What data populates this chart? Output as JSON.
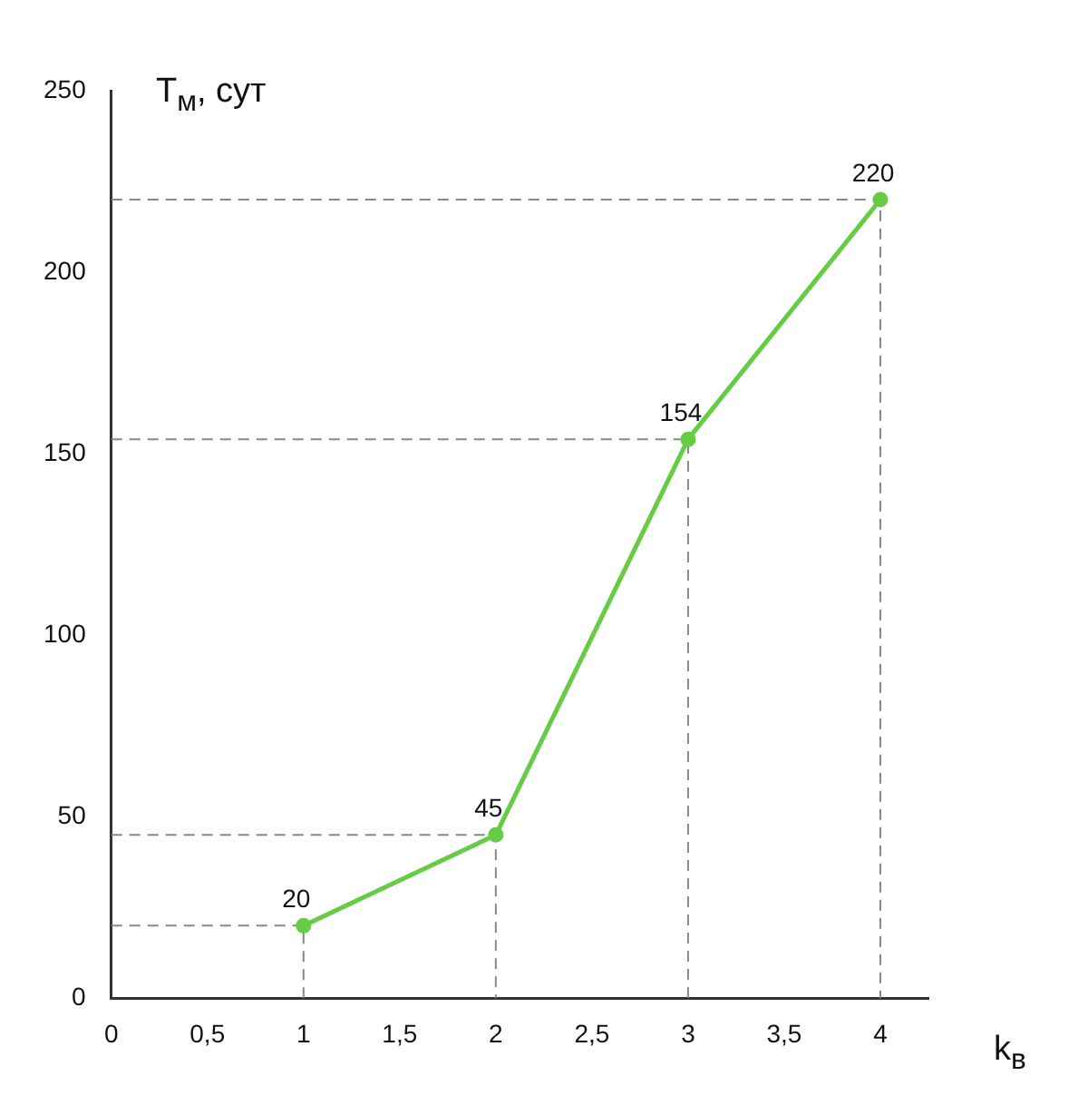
{
  "chart_data": {
    "type": "line",
    "xlabel": "k$_{в}$",
    "ylabel": "T$_{м}$, сут",
    "x": [
      1,
      2,
      3,
      4
    ],
    "series": [
      {
        "color": "#66cc44",
        "values": [
          20,
          45,
          154,
          220
        ]
      },
      {
        "color": "#888888",
        "x": [
          0,
          1,
          1
        ],
        "values": [
          20,
          20,
          0
        ],
        "line_style": "dashed",
        "marker": "none",
        "data_labels": false
      },
      {
        "color": "#888888",
        "x": [
          0,
          2,
          2
        ],
        "values": [
          45,
          45,
          0
        ],
        "line_style": "dashed",
        "marker": "none",
        "data_labels": false
      },
      {
        "color": "#888888",
        "x": [
          0,
          3,
          3
        ],
        "values": [
          154,
          154,
          0
        ],
        "line_style": "dashed",
        "marker": "none",
        "data_labels": false
      },
      {
        "color": "#888888",
        "x": [
          0,
          4,
          4
        ],
        "values": [
          220,
          220,
          0
        ],
        "line_style": "dashed",
        "marker": "none",
        "data_labels": false
      }
    ],
    "xlim": [
      0,
      4.25
    ],
    "xticks": [
      0,
      {
        "value": 0.5,
        "label": "0,5"
      },
      1,
      {
        "value": 1.5,
        "label": "1,5"
      },
      2,
      {
        "value": 2.5,
        "label": "2,5"
      },
      3,
      {
        "value": 3.5,
        "label": "3,5"
      },
      4
    ],
    "ylim": [
      0,
      250
    ],
    "yticks": [
      0,
      50,
      100,
      150,
      200,
      250
    ],
    "grid": false,
    "legend": false,
    "marker": "circle",
    "line_style": "solid",
    "data_labels": true
  }
}
